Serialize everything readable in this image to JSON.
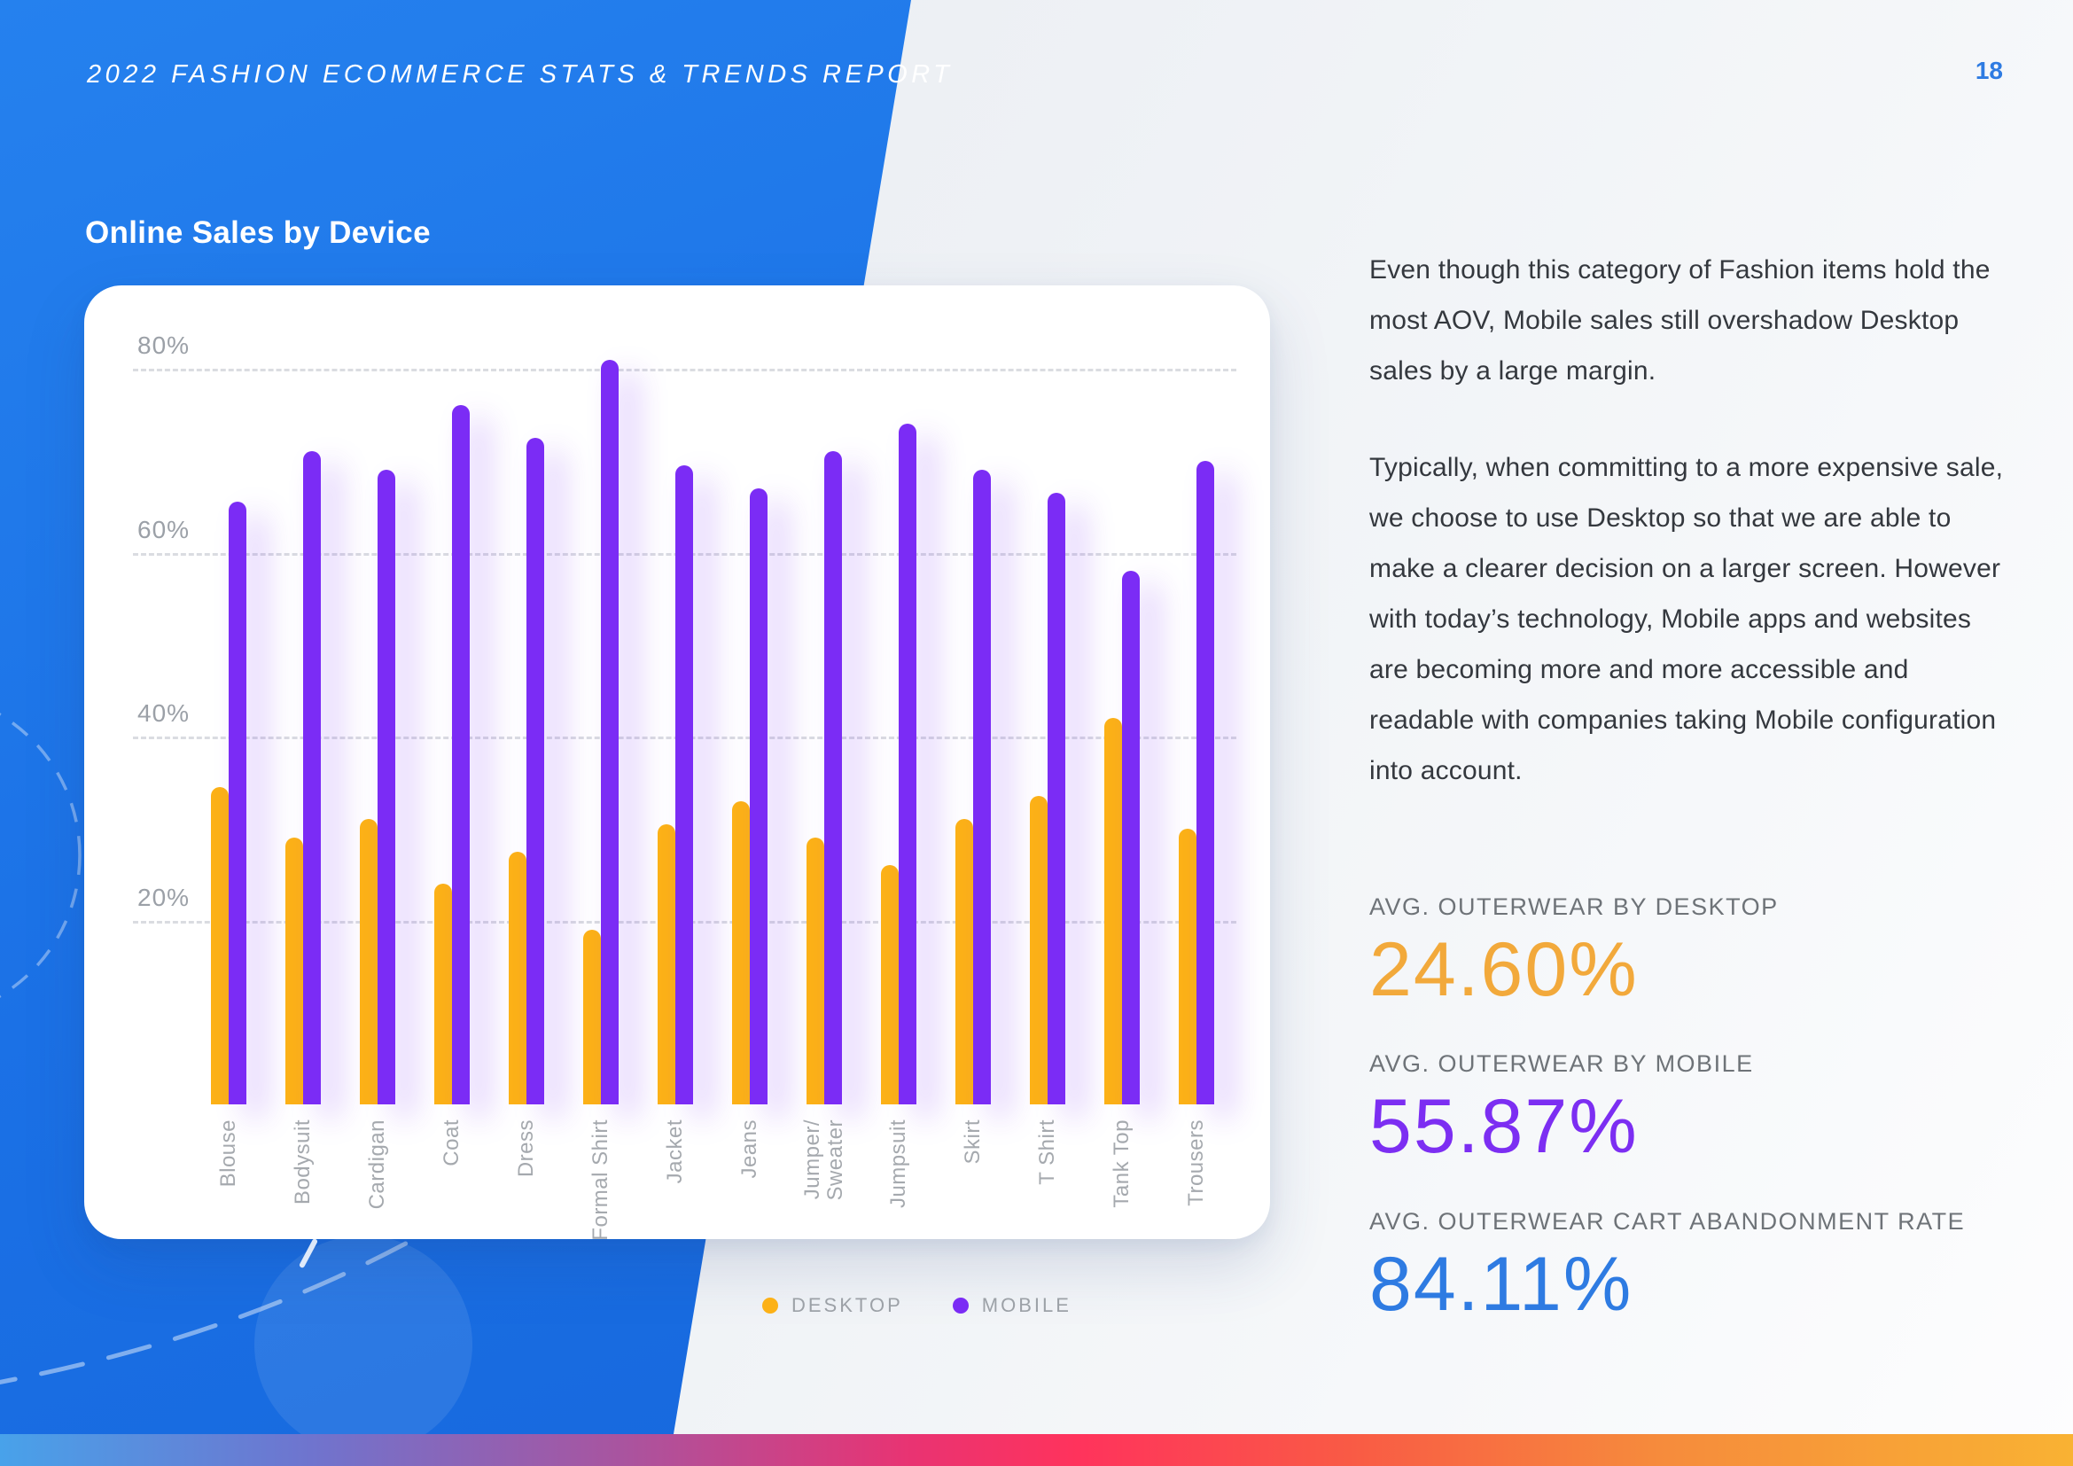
{
  "header": {
    "report_title": "2022 FASHION ECOMMERCE STATS & TRENDS REPORT",
    "page_number": "18"
  },
  "section": {
    "title": "Online Sales by Device"
  },
  "paragraphs": {
    "p1": "Even though this category of Fashion items hold the most AOV, Mobile sales still overshadow Desktop sales by a large margin.",
    "p2": "Typically, when committing to a more expensive sale, we choose to use Desktop so that we are able to make a clearer decision on a larger screen. However with today’s technology, Mobile apps and websites are becoming more and more accessible and readable with companies taking Mobile configuration into account."
  },
  "stats": [
    {
      "label": "AVG. OUTERWEAR BY DESKTOP",
      "value": "24.60%",
      "color": "#f2a93b"
    },
    {
      "label": "AVG. OUTERWEAR BY MOBILE",
      "value": "55.87%",
      "color": "#7c2ef2"
    },
    {
      "label": "AVG. OUTERWEAR CART ABANDONMENT RATE",
      "value": "84.11%",
      "color": "#2e7be2"
    }
  ],
  "legend": [
    {
      "label": "DESKTOP",
      "color": "#fcb117"
    },
    {
      "label": "MOBILE",
      "color": "#7b2cf5"
    }
  ],
  "chart_data": {
    "type": "bar",
    "title": "Online Sales by Device",
    "categories": [
      "Blouse",
      "Bodysuit",
      "Cardigan",
      "Coat",
      "Dress",
      "Formal Shirt",
      "Jacket",
      "Jeans",
      "Jumper/\nSweater",
      "Jumpsuit",
      "Skirt",
      "T Shirt",
      "Tank Top",
      "Trousers"
    ],
    "series": [
      {
        "name": "DESKTOP",
        "color": "#fcb117",
        "values": [
          34.5,
          29,
          31,
          24,
          27.5,
          19,
          30.5,
          33,
          29,
          26,
          31,
          33.5,
          42,
          30
        ]
      },
      {
        "name": "MOBILE",
        "color": "#7b2cf5",
        "values": [
          65.5,
          71,
          69,
          76,
          72.5,
          81,
          69.5,
          67,
          71,
          74,
          69,
          66.5,
          58,
          70
        ]
      }
    ],
    "ylabel": "",
    "xlabel": "",
    "y_ticks": [
      80,
      60,
      40,
      20
    ],
    "ylim": [
      0,
      87
    ],
    "grid": "horizontal-dashed",
    "legend_position": "bottom",
    "unit": "%"
  }
}
